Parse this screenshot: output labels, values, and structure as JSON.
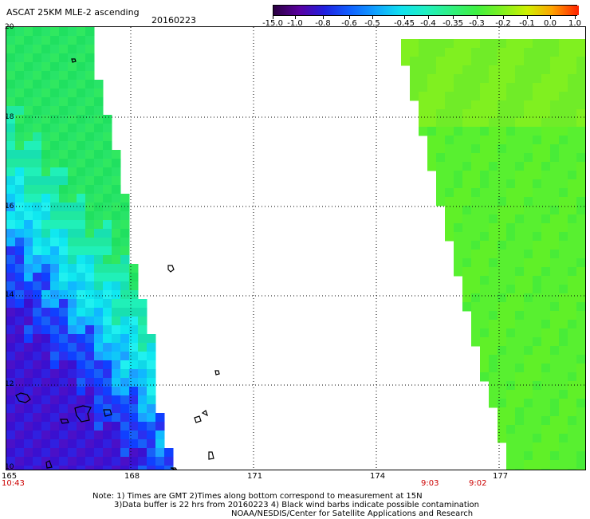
{
  "header": {
    "title": "ASCAT 25KM MLE-2 ascending",
    "date": "20160223"
  },
  "colorbar": {
    "labels": [
      "-15.0",
      "-1.0",
      "-0.8",
      "-0.6",
      "-0.5",
      "-0.45",
      "-0.4",
      "-0.35",
      "-0.3",
      "-0.2",
      "-0.1",
      "0.0",
      "1.0"
    ],
    "colors": [
      "#2a0040",
      "#5a00a0",
      "#2020e0",
      "#1060ff",
      "#10a0ff",
      "#10e0f0",
      "#20f0c0",
      "#30f080",
      "#40f040",
      "#80f020",
      "#d0f000",
      "#ffa000",
      "#ff2000"
    ]
  },
  "axes": {
    "lat_labels": [
      "20",
      "18",
      "16",
      "14",
      "12",
      "10"
    ],
    "lon_labels": [
      "165",
      "168",
      "171",
      "174",
      "177"
    ]
  },
  "times": {
    "left": "10:43",
    "mid": "9:03",
    "right": "9:02"
  },
  "footer": {
    "line1": "Note: 1) Times are GMT 2)Times along bottom correspond to measurement at 15N",
    "line2": "3)Data buffer is 22 hrs from 20160223 4) Black wind barbs indicate possible contamination",
    "line3": "NOAA/NESDIS/Center for Satellite Applications and Research"
  }
}
